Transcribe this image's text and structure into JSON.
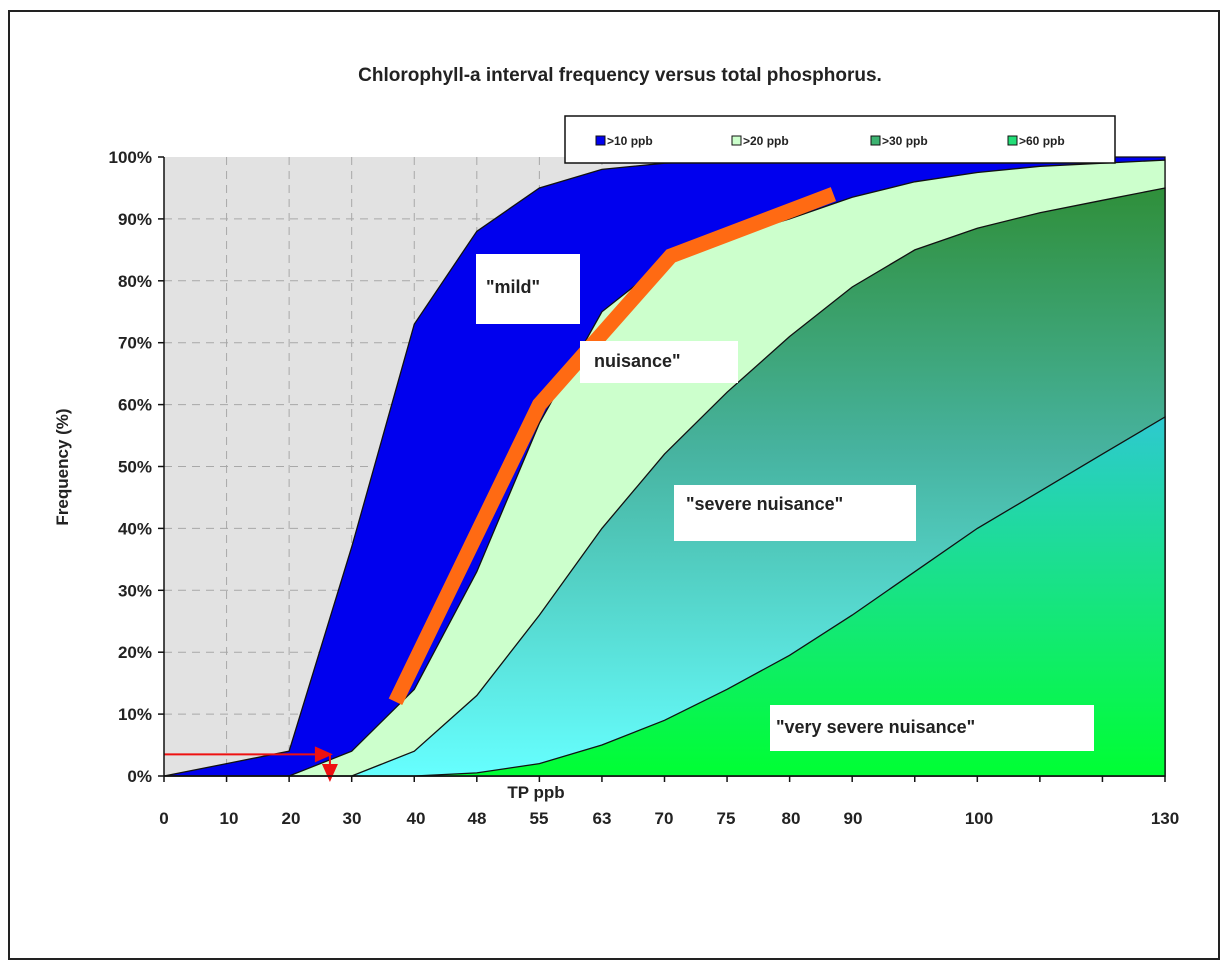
{
  "chart_data": {
    "type": "area",
    "title": "Chlorophyll-a interval frequency versus total phosphorus.",
    "xlabel": "TP ppb",
    "ylabel": "Frequency (%)",
    "x_ticks": [
      "0",
      "10",
      "20",
      "30",
      "40",
      "48",
      "55",
      "63",
      "70",
      "75",
      "80",
      "90",
      "100",
      "130"
    ],
    "y_ticks": [
      "0%",
      "10%",
      "20%",
      "30%",
      "40%",
      "50%",
      "60%",
      "70%",
      "80%",
      "90%",
      "100%"
    ],
    "ylim": [
      0,
      100
    ],
    "grid": "dashed vertical and horizontal gridlines",
    "legend_position": "top-right",
    "x_positions": [
      0,
      1,
      2,
      3,
      4,
      5,
      6,
      7,
      8,
      9,
      10,
      11,
      12,
      13,
      14,
      15,
      16
    ],
    "series": [
      {
        "name": ">10 ppb",
        "color": "#0000ee",
        "values": [
          0,
          2,
          4,
          37,
          73,
          88,
          95,
          98,
          99,
          99.5,
          99.8,
          100,
          100,
          100,
          100,
          100,
          100
        ]
      },
      {
        "name": ">20 ppb",
        "color": "#ccffcc",
        "values": [
          0,
          0,
          0,
          4,
          14,
          33,
          57,
          75,
          83,
          87,
          90,
          93.5,
          96,
          97.5,
          98.5,
          99,
          99.5
        ]
      },
      {
        "name": ">30 ppb",
        "color": "#3cb371",
        "values": [
          0,
          0,
          0,
          0,
          4,
          13,
          26,
          40,
          52,
          62,
          71,
          79,
          85,
          88.5,
          91,
          93,
          95
        ]
      },
      {
        "name": ">60 ppb",
        "color": "#22dd77",
        "values": [
          0,
          0,
          0,
          0,
          0,
          0.5,
          2,
          5,
          9,
          14,
          19.5,
          26,
          33,
          40,
          46,
          52,
          58
        ]
      }
    ],
    "annotations": [
      {
        "text": "\"mild\""
      },
      {
        "text": "nuisance\""
      },
      {
        "text": "\"severe nuisance\""
      },
      {
        "text": "\"very  severe nuisance\""
      }
    ],
    "highlight_line": {
      "color": "#ff6a13",
      "points": [
        [
          3.7,
          12
        ],
        [
          6.0,
          60
        ],
        [
          8.1,
          84
        ],
        [
          10.7,
          94
        ]
      ]
    },
    "arrow": {
      "color": "#ee1111",
      "y": 3.5,
      "x_end": 2.7
    }
  }
}
